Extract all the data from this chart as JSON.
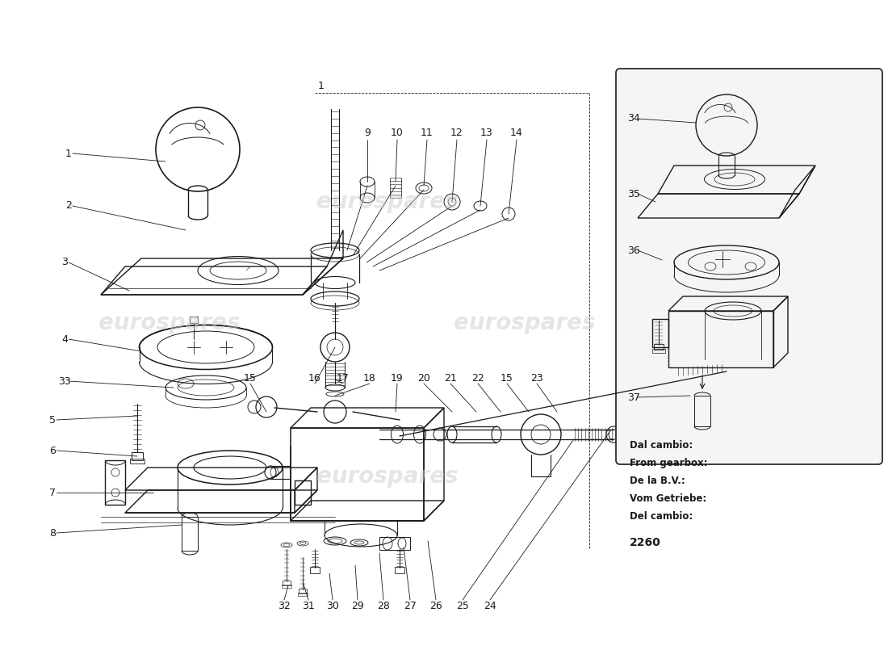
{
  "bg_color": "#ffffff",
  "line_color": "#1a1a1a",
  "watermark_color": "#cccccc",
  "inset_text": [
    "Dal cambio:",
    "From gearbox:",
    "De la B.V.:",
    "Vom Getriebe:",
    "Del cambio:",
    "2260"
  ]
}
